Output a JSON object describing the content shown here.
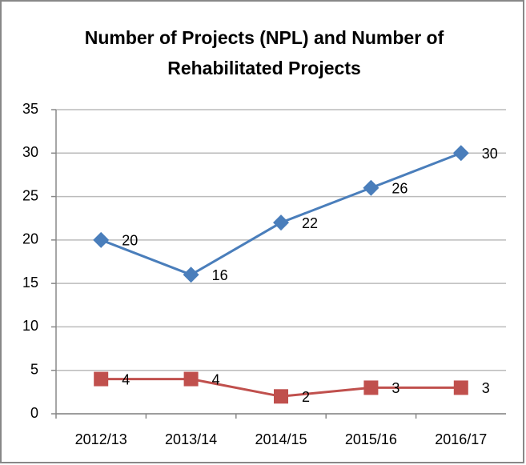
{
  "chart_data": {
    "type": "line",
    "title": "Number of Projects (NPL) and Number of Rehabilitated Projects",
    "categories": [
      "2012/13",
      "2013/14",
      "2014/15",
      "2015/16",
      "2016/17"
    ],
    "series": [
      {
        "color": "#4a7ebb",
        "marker": "diamond",
        "values": [
          20,
          16,
          22,
          26,
          30
        ]
      },
      {
        "color": "#c0504d",
        "marker": "square",
        "values": [
          4,
          4,
          2,
          3,
          3
        ]
      }
    ],
    "ylim": [
      0,
      35
    ],
    "yticks": [
      0,
      5,
      10,
      15,
      20,
      25,
      30,
      35
    ],
    "grid": true
  }
}
